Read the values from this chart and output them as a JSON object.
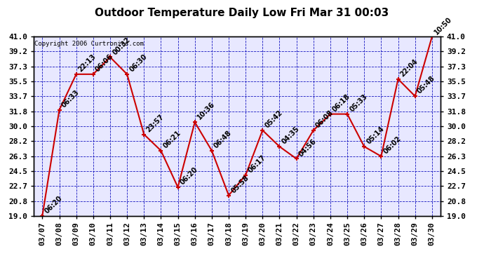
{
  "title": "Outdoor Temperature Daily Low Fri Mar 31 00:03",
  "copyright": "Copyright 2006 Curtronics.com",
  "dates": [
    "03/07",
    "03/08",
    "03/09",
    "03/10",
    "03/11",
    "03/12",
    "03/13",
    "03/14",
    "03/15",
    "03/16",
    "03/17",
    "03/18",
    "03/19",
    "03/20",
    "03/21",
    "03/22",
    "03/23",
    "03/24",
    "03/25",
    "03/26",
    "03/27",
    "03/28",
    "03/29",
    "03/30"
  ],
  "values": [
    19.0,
    32.0,
    36.4,
    36.4,
    38.5,
    36.4,
    29.0,
    27.0,
    22.5,
    30.5,
    27.0,
    21.5,
    24.0,
    29.5,
    27.5,
    26.0,
    29.5,
    31.5,
    31.5,
    27.5,
    26.3,
    35.8,
    33.7,
    41.0
  ],
  "times": [
    "06:20",
    "06:33",
    "22:13",
    "06:06",
    "00:32",
    "06:30",
    "23:57",
    "06:21",
    "06:20",
    "10:36",
    "06:48",
    "05:58",
    "06:17",
    "05:42",
    "04:35",
    "04:56",
    "06:08",
    "06:18",
    "05:33",
    "05:14",
    "06:02",
    "22:04",
    "05:48",
    "10:50"
  ],
  "ylim": [
    19.0,
    41.0
  ],
  "yticks": [
    19.0,
    20.8,
    22.7,
    24.5,
    26.3,
    28.2,
    30.0,
    31.8,
    33.7,
    35.5,
    37.3,
    39.2,
    41.0
  ],
  "line_color": "#cc0000",
  "marker_color": "#cc0000",
  "bg_color": "#ffffff",
  "plot_bg_color": "#e8e8ff",
  "grid_color": "#0000bb",
  "border_color": "#000000",
  "title_color": "#000000",
  "label_color": "#000000",
  "copyright_color": "#000000",
  "title_fontsize": 11,
  "label_fontsize": 7,
  "tick_fontsize": 8
}
